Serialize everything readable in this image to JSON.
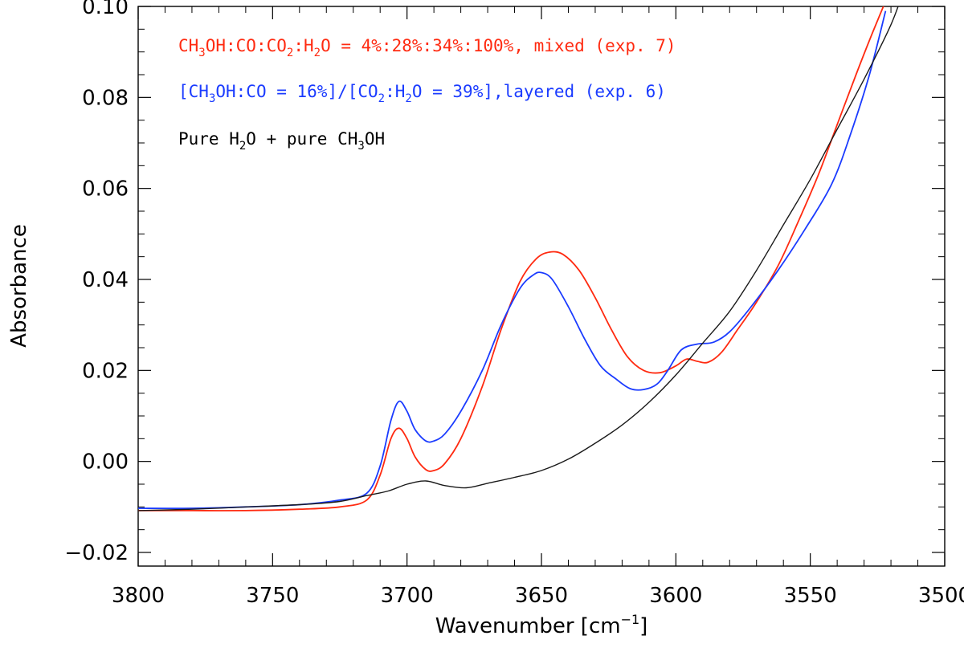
{
  "chart_data": {
    "type": "line",
    "xlabel": "Wavenumber",
    "xlabel_unit_prefix": "[cm",
    "xlabel_unit_exp": "−1",
    "xlabel_unit_suffix": "]",
    "ylabel": "Absorbance",
    "xlim": [
      3800,
      3500
    ],
    "ylim": [
      -0.023,
      0.1
    ],
    "x_reversed": true,
    "x_ticks": [
      3800,
      3750,
      3700,
      3650,
      3600,
      3550,
      3500
    ],
    "x_tick_labels": [
      "3800",
      "3750",
      "3700",
      "3650",
      "3600",
      "3550",
      "3500"
    ],
    "y_ticks": [
      -0.02,
      0.0,
      0.02,
      0.04,
      0.06,
      0.08,
      0.1
    ],
    "y_tick_labels": [
      "−0.02",
      "0.00",
      "0.02",
      "0.04",
      "0.06",
      "0.08",
      "0.10"
    ],
    "x_minor_step": 10,
    "y_minor_step": 0.005,
    "grid": false,
    "legend_position": "top-left",
    "series": [
      {
        "name": "CH3OH:CO:CO2:H2O = 4%:28%:34%:100%, mixed (exp. 7)",
        "color": "#ff2a10",
        "x": [
          3800,
          3780,
          3760,
          3740,
          3725,
          3715,
          3710,
          3706,
          3703,
          3700,
          3697,
          3693,
          3690,
          3686,
          3680,
          3672,
          3665,
          3658,
          3652,
          3647,
          3642,
          3636,
          3630,
          3624,
          3618,
          3612,
          3606,
          3600,
          3596,
          3592,
          3588,
          3583,
          3577,
          3570,
          3562,
          3555,
          3547,
          3540,
          3533,
          3527,
          3520
        ],
        "y": [
          -0.0108,
          -0.0108,
          -0.0108,
          -0.0105,
          -0.01,
          -0.0085,
          -0.003,
          0.005,
          0.0073,
          0.005,
          0.001,
          -0.0018,
          -0.002,
          -0.0005,
          0.005,
          0.0165,
          0.029,
          0.0395,
          0.0445,
          0.046,
          0.0455,
          0.042,
          0.036,
          0.029,
          0.023,
          0.02,
          0.0195,
          0.021,
          0.0225,
          0.022,
          0.0218,
          0.024,
          0.029,
          0.035,
          0.043,
          0.052,
          0.063,
          0.074,
          0.085,
          0.094,
          0.104
        ]
      },
      {
        "name": "[CH3OH:CO = 16%]/[CO2:H2O = 39%],layered (exp. 6)",
        "color": "#1a3bff",
        "x": [
          3800,
          3780,
          3760,
          3740,
          3725,
          3715,
          3710,
          3706,
          3703,
          3700,
          3697,
          3693,
          3690,
          3686,
          3680,
          3672,
          3665,
          3658,
          3653,
          3650,
          3646,
          3640,
          3634,
          3628,
          3622,
          3617,
          3612,
          3607,
          3603,
          3598,
          3592,
          3586,
          3580,
          3572,
          3562,
          3552,
          3542,
          3535,
          3528,
          3522
        ],
        "y": [
          -0.0103,
          -0.0103,
          -0.01,
          -0.0095,
          -0.0085,
          -0.007,
          -0.001,
          0.009,
          0.0132,
          0.011,
          0.007,
          0.0045,
          0.0045,
          0.006,
          0.011,
          0.02,
          0.03,
          0.038,
          0.041,
          0.0415,
          0.04,
          0.034,
          0.027,
          0.021,
          0.018,
          0.016,
          0.0158,
          0.017,
          0.02,
          0.0245,
          0.0258,
          0.0262,
          0.0285,
          0.034,
          0.042,
          0.051,
          0.061,
          0.072,
          0.085,
          0.099
        ]
      },
      {
        "name": "Pure H2O + pure CH3OH",
        "color": "#1a1a1a",
        "x": [
          3800,
          3780,
          3760,
          3740,
          3725,
          3715,
          3707,
          3700,
          3693,
          3686,
          3678,
          3670,
          3660,
          3650,
          3640,
          3630,
          3620,
          3610,
          3600,
          3590,
          3580,
          3570,
          3560,
          3550,
          3540,
          3530,
          3520,
          3515
        ],
        "y": [
          -0.0108,
          -0.0105,
          -0.01,
          -0.0095,
          -0.0088,
          -0.0075,
          -0.0065,
          -0.005,
          -0.0043,
          -0.0053,
          -0.0058,
          -0.0048,
          -0.0035,
          -0.002,
          0.0005,
          0.004,
          0.008,
          0.013,
          0.019,
          0.026,
          0.033,
          0.042,
          0.052,
          0.062,
          0.073,
          0.084,
          0.096,
          0.104
        ]
      }
    ]
  },
  "legend": {
    "mixed": {
      "p1": "CH",
      "s1": "3",
      "p2": "OH:CO:CO",
      "s2": "2",
      "p3": ":H",
      "s3": "2",
      "p4": "O = 4%:28%:34%:100%, mixed (exp. 7)",
      "color": "#ff2a10"
    },
    "layered": {
      "p1": "[CH",
      "s1": "3",
      "p2": "OH:CO = 16%]/[CO",
      "s2": "2",
      "p3": ":H",
      "s3": "2",
      "p4": "O = 39%],layered (exp. 6)",
      "color": "#1a3bff"
    },
    "pure": {
      "p1": "Pure H",
      "s1": "2",
      "p2": "O + pure CH",
      "s2": "3",
      "p3": "OH",
      "color": "#000000"
    }
  }
}
